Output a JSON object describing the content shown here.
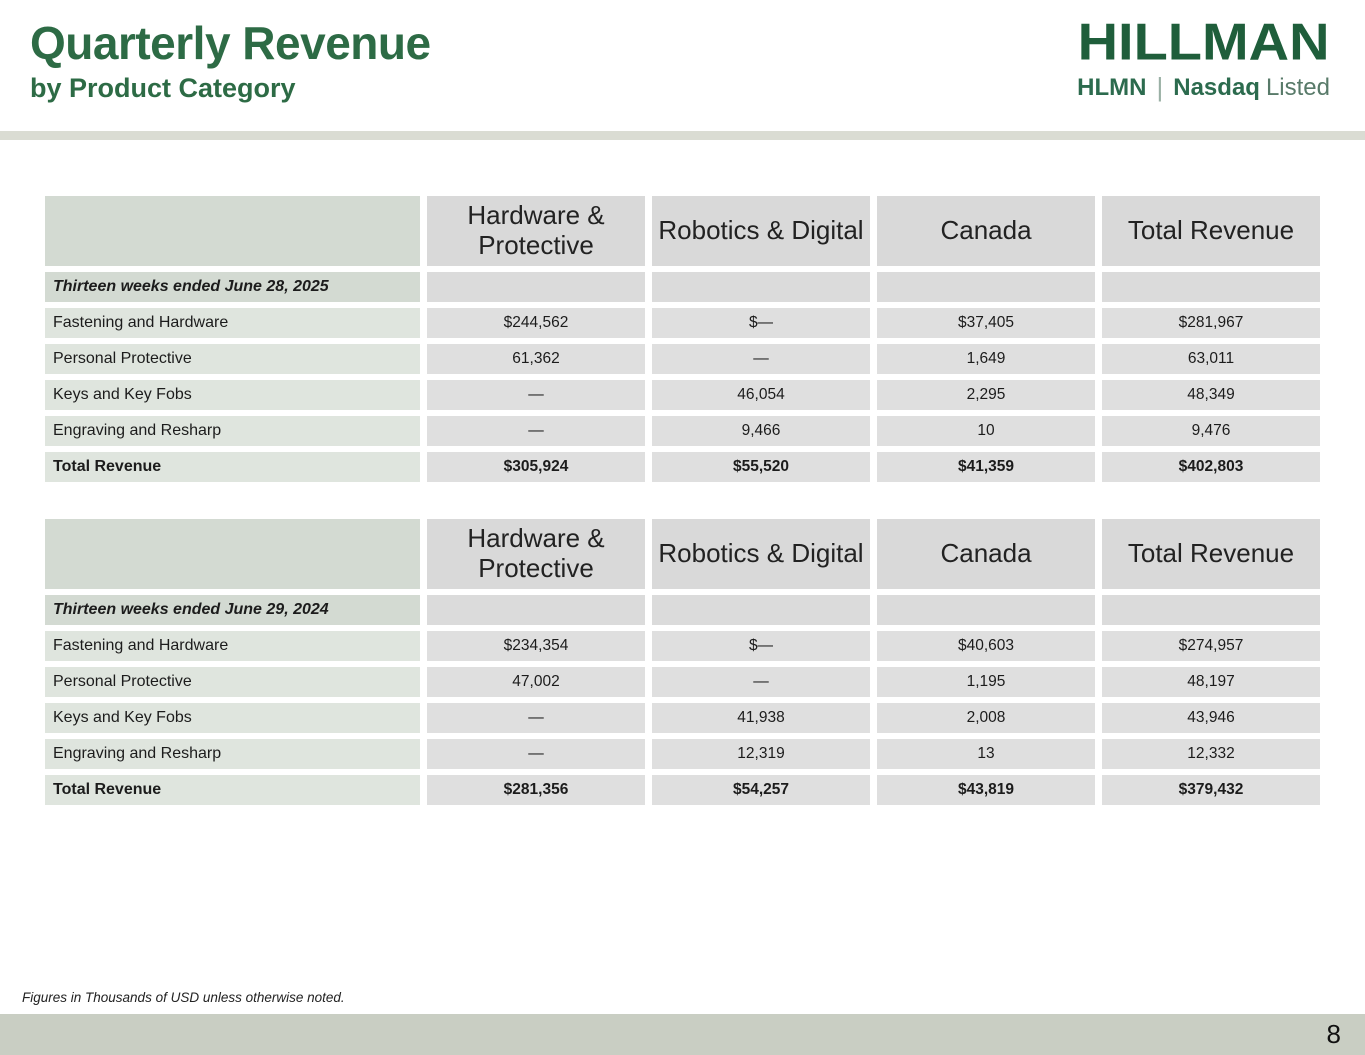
{
  "header": {
    "title": "Quarterly Revenue",
    "subtitle": "by Product Category",
    "logo": {
      "wordmark": "HILLMAN",
      "ticker": "HLMN",
      "separator": "|",
      "exchange": "Nasdaq",
      "exchange_suffix": "Listed"
    }
  },
  "colors": {
    "brand_green": "#2d6b45",
    "logo_green": "#1f5e3b",
    "header_label_bg": "#d3dad2",
    "header_data_bg": "#d9d9d9",
    "row_label_bg": "#dfe5de",
    "row_data_bg": "#dfdfdf",
    "divider_bar": "#dadcd3",
    "footer_bar": "#c9cec3"
  },
  "tables": [
    {
      "columns": [
        "Hardware & Protective",
        "Robotics & Digital",
        "Canada",
        "Total Revenue"
      ],
      "period_label": "Thirteen weeks ended June 28, 2025",
      "rows": [
        {
          "label": "Fastening and Hardware",
          "values": [
            "$244,562",
            "$—",
            "$37,405",
            "$281,967"
          ],
          "bold": false
        },
        {
          "label": "Personal Protective",
          "values": [
            "61,362",
            "—",
            "1,649",
            "63,011"
          ],
          "bold": false
        },
        {
          "label": "Keys and Key Fobs",
          "values": [
            "—",
            "46,054",
            "2,295",
            "48,349"
          ],
          "bold": false
        },
        {
          "label": "Engraving and Resharp",
          "values": [
            "—",
            "9,466",
            "10",
            "9,476"
          ],
          "bold": false
        },
        {
          "label": "Total Revenue",
          "values": [
            "$305,924",
            "$55,520",
            "$41,359",
            "$402,803"
          ],
          "bold": true
        }
      ]
    },
    {
      "columns": [
        "Hardware & Protective",
        "Robotics & Digital",
        "Canada",
        "Total Revenue"
      ],
      "period_label": "Thirteen weeks ended June 29, 2024",
      "rows": [
        {
          "label": "Fastening and Hardware",
          "values": [
            "$234,354",
            "$—",
            "$40,603",
            "$274,957"
          ],
          "bold": false
        },
        {
          "label": "Personal Protective",
          "values": [
            "47,002",
            "—",
            "1,195",
            "48,197"
          ],
          "bold": false
        },
        {
          "label": "Keys and Key Fobs",
          "values": [
            "—",
            "41,938",
            "2,008",
            "43,946"
          ],
          "bold": false
        },
        {
          "label": "Engraving and Resharp",
          "values": [
            "—",
            "12,319",
            "13",
            "12,332"
          ],
          "bold": false
        },
        {
          "label": "Total Revenue",
          "values": [
            "$281,356",
            "$54,257",
            "$43,819",
            "$379,432"
          ],
          "bold": true
        }
      ]
    }
  ],
  "footnote": "Figures in Thousands of USD unless otherwise noted.",
  "page_number": "8"
}
